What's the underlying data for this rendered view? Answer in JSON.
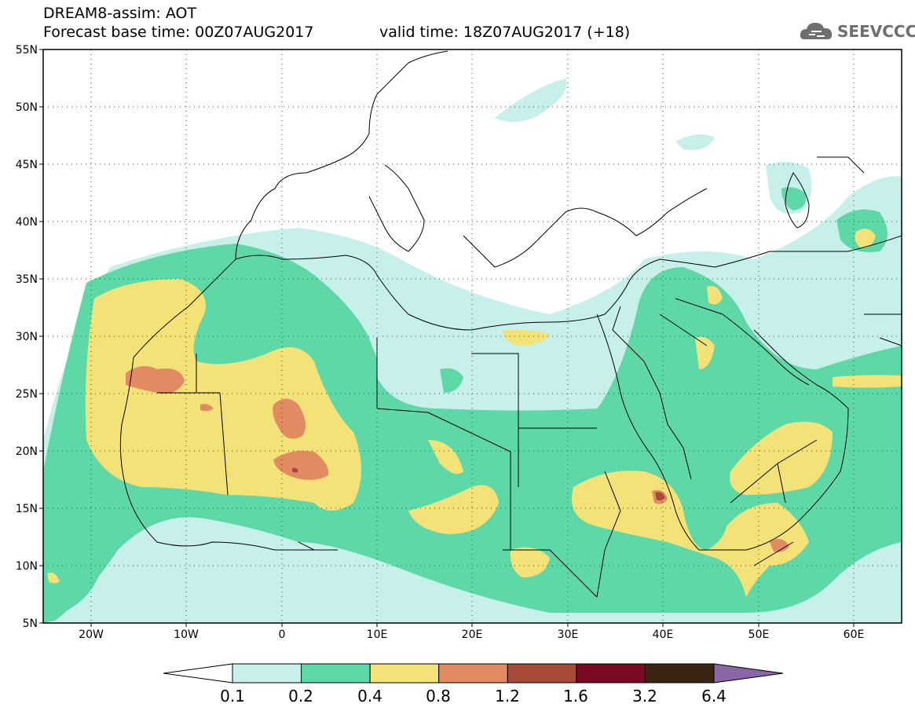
{
  "header": {
    "title_line1": "DREAM8-assim: AOT",
    "title_line2": "Forecast base time: 00Z07AUG2017",
    "valid_time": "valid time: 18Z07AUG2017 (+18)",
    "logo_text": "SEEVCCC"
  },
  "map": {
    "lat_labels": [
      "55N",
      "50N",
      "45N",
      "40N",
      "35N",
      "30N",
      "25N",
      "20N",
      "15N",
      "10N",
      "5N"
    ],
    "lon_labels": [
      "20W",
      "10W",
      "0",
      "10E",
      "20E",
      "30E",
      "40E",
      "50E",
      "60E"
    ],
    "lon_range": [
      -25,
      65
    ],
    "lat_range": [
      5,
      55
    ],
    "grid": "dotted"
  },
  "colorbar": {
    "bins": [
      {
        "color": "#c8f0ea"
      },
      {
        "color": "#5fd8a8"
      },
      {
        "color": "#f2e277"
      },
      {
        "color": "#e28a62"
      },
      {
        "color": "#a84a38"
      },
      {
        "color": "#7a0a22"
      },
      {
        "color": "#3b2414"
      }
    ],
    "under_color": "#ffffff",
    "over_color": "#8a68a8",
    "labels": [
      "0.1",
      "0.2",
      "0.4",
      "0.8",
      "1.2",
      "1.6",
      "3.2",
      "6.4"
    ]
  }
}
